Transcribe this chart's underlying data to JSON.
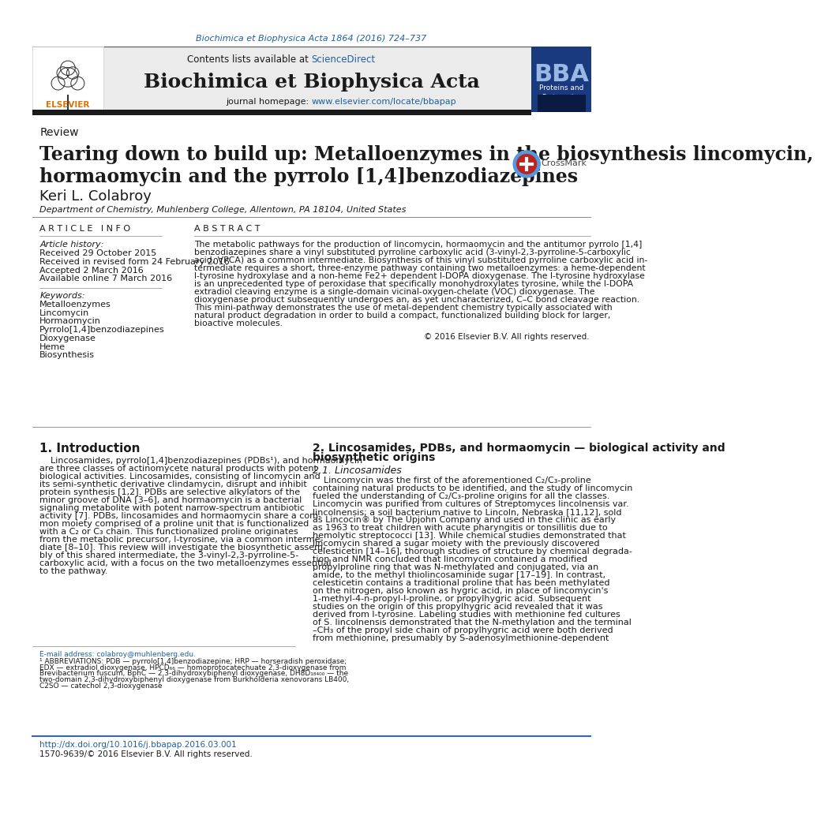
{
  "journal_ref": "Biochimica et Biophysica Acta 1864 (2016) 724–737",
  "header_text1": "Contents lists available at ",
  "header_sciencedirect": "ScienceDirect",
  "journal_name": "Biochimica et Biophysica Acta",
  "homepage_text": "journal homepage: ",
  "homepage_url": "www.elsevier.com/locate/bbapap",
  "article_type": "Review",
  "title_line1": "Tearing down to build up: Metalloenzymes in the biosynthesis lincomycin,",
  "title_line2": "hormaomycin and the pyrrolo [1,4]benzodiazepines",
  "author": "Keri L. Colabroy",
  "affiliation": "Department of Chemistry, Muhlenberg College, Allentown, PA 18104, United States",
  "article_info_header": "A R T I C L E   I N F O",
  "abstract_header": "A B S T R A C T",
  "article_history_label": "Article history:",
  "received": "Received 29 October 2015",
  "received_revised": "Received in revised form 24 February 2016",
  "accepted": "Accepted 2 March 2016",
  "available_online": "Available online 7 March 2016",
  "keywords_label": "Keywords:",
  "keywords": [
    "Metalloenzymes",
    "Lincomycin",
    "Hormaomycin",
    "Pyrrolo[1,4]benzodiazepines",
    "Dioxygenase",
    "Heme",
    "Biosynthesis"
  ],
  "abstract_lines": [
    "The metabolic pathways for the production of lincomycin, hormaomycin and the antitumor pyrrolo [1,4]",
    "benzodiazepines share a vinyl substituted pyrroline carboxylic acid (3-vinyl-2,3-pyrroline-5-carboxylic",
    "acid, VPCA) as a common intermediate. Biosynthesis of this vinyl substituted pyrroline carboxylic acid in-",
    "termediate requires a short, three-enzyme pathway containing two metalloenzymes: a heme-dependent",
    "l-tyrosine hydroxylase and a non-heme Fe2+ dependent l-DOPA dioxygenase. The l-tyrosine hydroxylase",
    "is an unprecedented type of peroxidase that specifically monohydroxylates tyrosine, while the l-DOPA",
    "extradiol cleaving enzyme is a single-domain vicinal-oxygen-chelate (VOC) dioxygenase. The",
    "dioxygenase product subsequently undergoes an, as yet uncharacterized, C–C bond cleavage reaction.",
    "This mini-pathway demonstrates the use of metal-dependent chemistry typically associated with",
    "natural product degradation in order to build a compact, functionalized building block for larger,",
    "bioactive molecules."
  ],
  "copyright": "© 2016 Elsevier B.V. All rights reserved.",
  "section1_header": "1. Introduction",
  "intro_lines": [
    "    Lincosamides, pyrrolo[1,4]benzodiazepines (PDBs¹), and hormaomycin",
    "are three classes of actinomycete natural products with potent",
    "biological activities. Lincosamides, consisting of lincomycin and",
    "its semi-synthetic derivative clindamycin, disrupt and inhibit",
    "protein synthesis [1,2]. PDBs are selective alkylators of the",
    "minor groove of DNA [3–6], and hormaomycin is a bacterial",
    "signaling metabolite with potent narrow-spectrum antibiotic",
    "activity [7]. PDBs, lincosamides and hormaomycin share a com-",
    "mon moiety comprised of a proline unit that is functionalized",
    "with a C₂ or C₃ chain. This functionalized proline originates",
    "from the metabolic precursor, l-tyrosine, via a common interme-",
    "diate [8–10]. This review will investigate the biosynthetic assem-",
    "bly of this shared intermediate, the 3-vinyl-2,3-pyrroline-5-",
    "carboxylic acid, with a focus on the two metalloenzymes essential",
    "to the pathway."
  ],
  "section2_header_line1": "2. Lincosamides, PDBs, and hormaomycin — biological activity and",
  "section2_header_line2": "biosynthetic origins",
  "section2_1_header": "2.1. Lincosamides",
  "sec2_lines": [
    "    Lincomycin was the first of the aforementioned C₂/C₃-proline",
    "containing natural products to be identified, and the study of lincomycin",
    "fueled the understanding of C₂/C₃-proline origins for all the classes.",
    "Lincomycin was purified from cultures of Streptomyces lincolnensis var.",
    "lincolnensis; a soil bacterium native to Lincoln, Nebraska [11,12], sold",
    "as Lincocin® by The Upjohn Company and used in the clinic as early",
    "as 1963 to treat children with acute pharyngitis or tonsillitis due to",
    "hemolytic streptococci [13]. While chemical studies demonstrated that",
    "lincomycin shared a sugar moiety with the previously discovered",
    "celesticetin [14–16], thorough studies of structure by chemical degrada-",
    "tion and NMR concluded that lincomycin contained a modified",
    "propylproline ring that was N-methylated and conjugated, via an",
    "amide, to the methyl thiolincosaminide sugar [17–19]. In contrast,",
    "celesticetin contains a traditional proline that has been methylated",
    "on the nitrogen, also known as hygric acid, in place of lincomycin's",
    "1-methyl-4-n-propyl-l-proline, or propylhygric acid. Subsequent",
    "studies on the origin of this propylhygric acid revealed that it was",
    "derived from l-tyrosine. Labeling studies with methionine fed cultures",
    "of S. lincolnensis demonstrated that the N-methylation and the terminal",
    "–CH₃ of the propyl side chain of propylhygric acid were both derived",
    "from methionine, presumably by S-adenosylmethionine-dependent"
  ],
  "footnote_email": "E-mail address: colabroy@muhlenberg.edu.",
  "footnote_lines": [
    "¹ ABBREVIATIONS: PDB — pyrrolo[1,4]benzodiazepine; HRP — horseradish peroxidase;",
    "EDX — extradiol dioxygenase, HPCD₆₆ — homoprotocatechuate 2,3-dioxygenase from",
    "Brevibacterium fuscum, BphC — 2,3-dihydroxybiphenyl dioxygenase, DH8D₁₈₄₀₀ — the",
    "two-domain 2,3-dihydroxybiphenyl dioxygenase from Burkholderia xenovorans LB400,",
    "C2SO — catechol 2,3-dioxygenase"
  ],
  "doi": "http://dx.doi.org/10.1016/j.bbapap.2016.03.001",
  "issn": "1570-9639/© 2016 Elsevier B.V. All rights reserved.",
  "bg_color": "#ffffff",
  "header_bg_color": "#ebebeb",
  "link_color": "#2060a0",
  "black_bar_color": "#1a1a1a",
  "text_color": "#1a1a1a"
}
